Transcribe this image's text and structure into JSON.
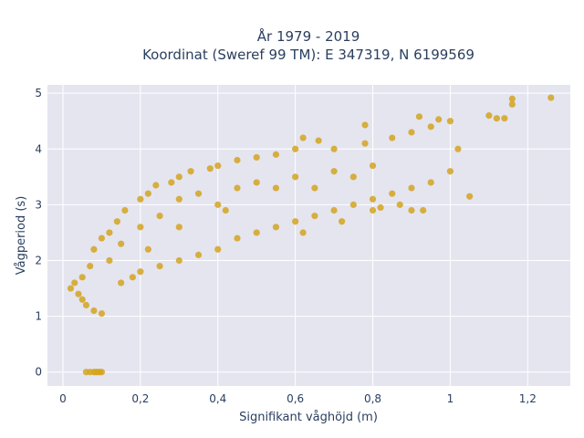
{
  "chart_data": {
    "type": "scatter",
    "title_lines": [
      "År 1979 - 2019",
      "Koordinat (Sweref 99 TM): E 347319, N 6199569"
    ],
    "xlabel": "Signifikant våghöjd (m)",
    "ylabel": "Vågperiod (s)",
    "xlim": [
      -0.04,
      1.31
    ],
    "ylim": [
      -0.25,
      5.15
    ],
    "x_ticks": [
      0,
      0.2,
      0.4,
      0.6,
      0.8,
      1,
      1.2
    ],
    "x_tick_labels": [
      "0",
      "0,2",
      "0,4",
      "0,6",
      "0,8",
      "1",
      "1,2"
    ],
    "y_ticks": [
      0,
      1,
      2,
      3,
      4,
      5
    ],
    "y_tick_labels": [
      "0",
      "1",
      "2",
      "3",
      "4",
      "5"
    ],
    "grid": true,
    "colors": {
      "marker": "#D4A520",
      "plot_bg": "#E5E5F0",
      "grid": "#ffffff",
      "text": "#2a3f5f"
    },
    "series": [
      {
        "points": [
          [
            0.06,
            0
          ],
          [
            0.07,
            0
          ],
          [
            0.08,
            0
          ],
          [
            0.09,
            0
          ],
          [
            0.1,
            0
          ],
          [
            0.085,
            0
          ],
          [
            0.095,
            0
          ],
          [
            0.02,
            1.5
          ],
          [
            0.03,
            1.6
          ],
          [
            0.04,
            1.4
          ],
          [
            0.05,
            1.3
          ],
          [
            0.05,
            1.7
          ],
          [
            0.06,
            1.2
          ],
          [
            0.07,
            1.9
          ],
          [
            0.08,
            2.2
          ],
          [
            0.08,
            1.1
          ],
          [
            0.1,
            1.05
          ],
          [
            0.1,
            2.4
          ],
          [
            0.12,
            2.5
          ],
          [
            0.14,
            2.7
          ],
          [
            0.15,
            1.6
          ],
          [
            0.16,
            2.9
          ],
          [
            0.18,
            1.7
          ],
          [
            0.2,
            3.1
          ],
          [
            0.2,
            1.8
          ],
          [
            0.22,
            3.2
          ],
          [
            0.24,
            3.35
          ],
          [
            0.25,
            1.9
          ],
          [
            0.28,
            3.4
          ],
          [
            0.3,
            2.0
          ],
          [
            0.3,
            3.5
          ],
          [
            0.33,
            3.6
          ],
          [
            0.35,
            2.1
          ],
          [
            0.38,
            3.65
          ],
          [
            0.4,
            2.2
          ],
          [
            0.4,
            3.7
          ],
          [
            0.45,
            2.4
          ],
          [
            0.45,
            3.8
          ],
          [
            0.5,
            2.5
          ],
          [
            0.5,
            3.85
          ],
          [
            0.55,
            2.6
          ],
          [
            0.55,
            3.9
          ],
          [
            0.6,
            4.0
          ],
          [
            0.6,
            2.7
          ],
          [
            0.62,
            2.5
          ],
          [
            0.65,
            2.8
          ],
          [
            0.7,
            4.0
          ],
          [
            0.7,
            2.9
          ],
          [
            0.72,
            2.7
          ],
          [
            0.75,
            3.0
          ],
          [
            0.78,
            4.1
          ],
          [
            0.8,
            3.1
          ],
          [
            0.8,
            2.9
          ],
          [
            0.85,
            4.2
          ],
          [
            0.85,
            3.2
          ],
          [
            0.9,
            4.3
          ],
          [
            0.9,
            3.3
          ],
          [
            0.9,
            2.9
          ],
          [
            0.95,
            4.4
          ],
          [
            0.95,
            3.4
          ],
          [
            1.0,
            4.5
          ],
          [
            1.0,
            3.6
          ],
          [
            1.02,
            4.0
          ],
          [
            1.05,
            3.15
          ],
          [
            1.1,
            4.6
          ],
          [
            1.12,
            4.55
          ],
          [
            1.14,
            4.55
          ],
          [
            1.16,
            4.9
          ],
          [
            1.16,
            4.8
          ],
          [
            1.26,
            4.92
          ],
          [
            0.3,
            3.1
          ],
          [
            0.35,
            3.2
          ],
          [
            0.25,
            2.8
          ],
          [
            0.2,
            2.6
          ],
          [
            0.15,
            2.3
          ],
          [
            0.12,
            2.0
          ],
          [
            0.45,
            3.3
          ],
          [
            0.5,
            3.4
          ],
          [
            0.42,
            2.9
          ],
          [
            0.55,
            3.3
          ],
          [
            0.6,
            3.5
          ],
          [
            0.65,
            3.3
          ],
          [
            0.3,
            2.6
          ],
          [
            0.22,
            2.2
          ],
          [
            0.4,
            3.0
          ],
          [
            0.7,
            3.6
          ],
          [
            0.8,
            3.7
          ],
          [
            0.75,
            3.5
          ],
          [
            0.62,
            4.2
          ],
          [
            0.78,
            4.43
          ],
          [
            0.92,
            4.58
          ],
          [
            0.66,
            4.15
          ],
          [
            0.97,
            4.53
          ],
          [
            0.82,
            2.95
          ],
          [
            0.87,
            3.0
          ],
          [
            0.93,
            2.9
          ]
        ]
      }
    ]
  }
}
